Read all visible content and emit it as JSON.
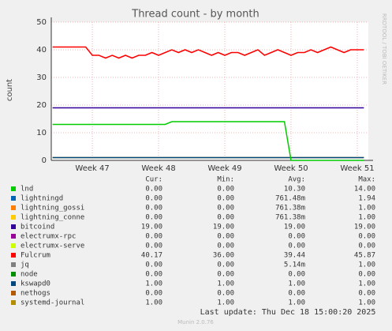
{
  "chart_data": {
    "type": "line",
    "title": "Thread count - by month",
    "y_label": "count",
    "side_text": "RRDTOOL / TOBI OETIKER",
    "last_update": "Last update: Thu Dec 18 15:00:20 2025",
    "footer": "Munin 2.0.76",
    "stat_headers": [
      "Cur:",
      "Min:",
      "Avg:",
      "Max:"
    ],
    "xlim": [
      46.38,
      51.167
    ],
    "ylim": [
      0,
      50
    ],
    "yticks": [
      0,
      10,
      20,
      30,
      40,
      50
    ],
    "xticks": [
      {
        "value": 47,
        "label": "Week 47"
      },
      {
        "value": 48,
        "label": "Week 48"
      },
      {
        "value": 49,
        "label": "Week 49"
      },
      {
        "value": 50,
        "label": "Week 50"
      },
      {
        "value": 51,
        "label": "Week 51"
      }
    ],
    "grid": true,
    "x": [
      46.4,
      46.5,
      46.6,
      46.7,
      46.8,
      46.9,
      47.0,
      47.1,
      47.2,
      47.3,
      47.4,
      47.5,
      47.6,
      47.7,
      47.8,
      47.9,
      48.0,
      48.1,
      48.2,
      48.3,
      48.4,
      48.5,
      48.6,
      48.7,
      48.8,
      48.9,
      49.0,
      49.1,
      49.2,
      49.3,
      49.4,
      49.5,
      49.6,
      49.7,
      49.8,
      49.9,
      50.0,
      50.1,
      50.2,
      50.3,
      50.4,
      50.5,
      50.6,
      50.7,
      50.8,
      50.9,
      51.0,
      51.1
    ],
    "series": [
      {
        "name": "lnd",
        "color": "#00cc00",
        "stats": [
          "0.00",
          "0.00",
          "10.30",
          "14.00"
        ],
        "values": [
          13,
          13,
          13,
          13,
          13,
          13,
          13,
          13,
          13,
          13,
          13,
          13,
          13,
          13,
          13,
          13,
          13,
          13,
          14,
          14,
          14,
          14,
          14,
          14,
          14,
          14,
          14,
          14,
          14,
          14,
          14,
          14,
          14,
          14,
          14,
          14,
          0,
          0,
          0,
          0,
          0,
          0,
          0,
          0,
          0,
          0,
          0,
          0
        ]
      },
      {
        "name": "lightningd",
        "color": "#0066b3",
        "stats": [
          "0.00",
          "0.00",
          "761.48m",
          "1.94"
        ]
      },
      {
        "name": "lightning_gossi",
        "color": "#ff8000",
        "stats": [
          "0.00",
          "0.00",
          "761.38m",
          "1.00"
        ]
      },
      {
        "name": "lightning_conne",
        "color": "#ffcc00",
        "stats": [
          "0.00",
          "0.00",
          "761.38m",
          "1.00"
        ]
      },
      {
        "name": "bitcoind",
        "color": "#330099",
        "stats": [
          "19.00",
          "19.00",
          "19.00",
          "19.00"
        ],
        "values": [
          19,
          19,
          19,
          19,
          19,
          19,
          19,
          19,
          19,
          19,
          19,
          19,
          19,
          19,
          19,
          19,
          19,
          19,
          19,
          19,
          19,
          19,
          19,
          19,
          19,
          19,
          19,
          19,
          19,
          19,
          19,
          19,
          19,
          19,
          19,
          19,
          19,
          19,
          19,
          19,
          19,
          19,
          19,
          19,
          19,
          19,
          19,
          19
        ]
      },
      {
        "name": "electrumx-rpc",
        "color": "#990099",
        "stats": [
          "0.00",
          "0.00",
          "0.00",
          "0.00"
        ]
      },
      {
        "name": "electrumx-serve",
        "color": "#ccff00",
        "stats": [
          "0.00",
          "0.00",
          "0.00",
          "0.00"
        ]
      },
      {
        "name": "Fulcrum",
        "color": "#ff0000",
        "stats": [
          "40.17",
          "36.00",
          "39.44",
          "45.87"
        ],
        "values": [
          41,
          41,
          41,
          41,
          41,
          41,
          38,
          38,
          37,
          38,
          37,
          38,
          37,
          38,
          38,
          39,
          38,
          39,
          40,
          39,
          40,
          39,
          40,
          39,
          38,
          39,
          38,
          39,
          39,
          38,
          39,
          40,
          38,
          39,
          40,
          39,
          38,
          39,
          39,
          40,
          39,
          40,
          41,
          40,
          39,
          40,
          40,
          40
        ]
      },
      {
        "name": "jq",
        "color": "#808080",
        "stats": [
          "0.00",
          "0.00",
          "5.14m",
          "1.00"
        ]
      },
      {
        "name": "node",
        "color": "#008f00",
        "stats": [
          "0.00",
          "0.00",
          "0.00",
          "0.00"
        ]
      },
      {
        "name": "kswapd0",
        "color": "#00487d",
        "stats": [
          "1.00",
          "1.00",
          "1.00",
          "1.00"
        ],
        "values": [
          1,
          1,
          1,
          1,
          1,
          1,
          1,
          1,
          1,
          1,
          1,
          1,
          1,
          1,
          1,
          1,
          1,
          1,
          1,
          1,
          1,
          1,
          1,
          1,
          1,
          1,
          1,
          1,
          1,
          1,
          1,
          1,
          1,
          1,
          1,
          1,
          1,
          1,
          1,
          1,
          1,
          1,
          1,
          1,
          1,
          1,
          1,
          1
        ]
      },
      {
        "name": "nethogs",
        "color": "#b35a00",
        "stats": [
          "0.00",
          "0.00",
          "0.00",
          "0.00"
        ]
      },
      {
        "name": "systemd-journal",
        "color": "#b38f00",
        "stats": [
          "1.00",
          "1.00",
          "1.00",
          "1.00"
        ],
        "values": [
          1,
          1,
          1,
          1,
          1,
          1,
          1,
          1,
          1,
          1,
          1,
          1,
          1,
          1,
          1,
          1,
          1,
          1,
          1,
          1,
          1,
          1,
          1,
          1,
          1,
          1,
          1,
          1,
          1,
          1,
          1,
          1,
          1,
          1,
          1,
          1,
          1,
          1,
          1,
          1,
          1,
          1,
          1,
          1,
          1,
          1,
          1,
          1
        ]
      }
    ]
  }
}
